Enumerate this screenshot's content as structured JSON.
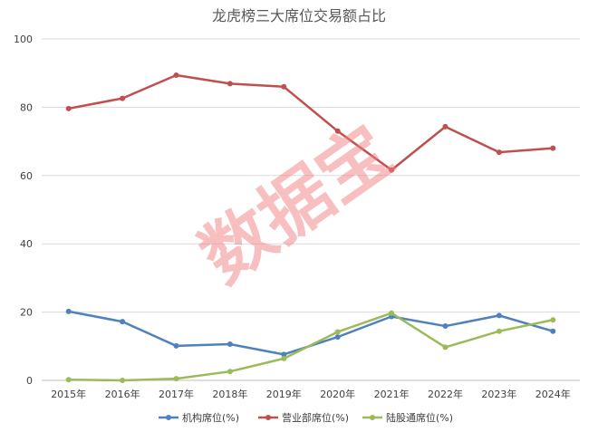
{
  "chart_data": {
    "type": "line",
    "title": "龙虎榜三大席位交易额占比",
    "categories": [
      "2015年",
      "2016年",
      "2017年",
      "2018年",
      "2019年",
      "2020年",
      "2021年",
      "2022年",
      "2023年",
      "2024年"
    ],
    "ylim": [
      0,
      100
    ],
    "yticks": [
      "0",
      "20",
      "40",
      "60",
      "80",
      "100"
    ],
    "grid": true,
    "legend": "bottom",
    "series": [
      {
        "name": "机构席位(%)",
        "color": "#4f81bd",
        "values": [
          20.2,
          17.2,
          10.1,
          10.6,
          7.6,
          12.7,
          18.7,
          15.9,
          19.0,
          14.4
        ]
      },
      {
        "name": "营业部席位(%)",
        "color": "#c0504d",
        "values": [
          79.6,
          82.6,
          89.4,
          86.9,
          86.0,
          73.0,
          61.6,
          74.3,
          66.8,
          68.0
        ]
      },
      {
        "name": "陆股通席位(%)",
        "color": "#9bbb59",
        "values": [
          0.2,
          0.0,
          0.5,
          2.6,
          6.4,
          14.2,
          19.7,
          9.7,
          14.4,
          17.7
        ]
      }
    ]
  },
  "watermark": "数据宝"
}
